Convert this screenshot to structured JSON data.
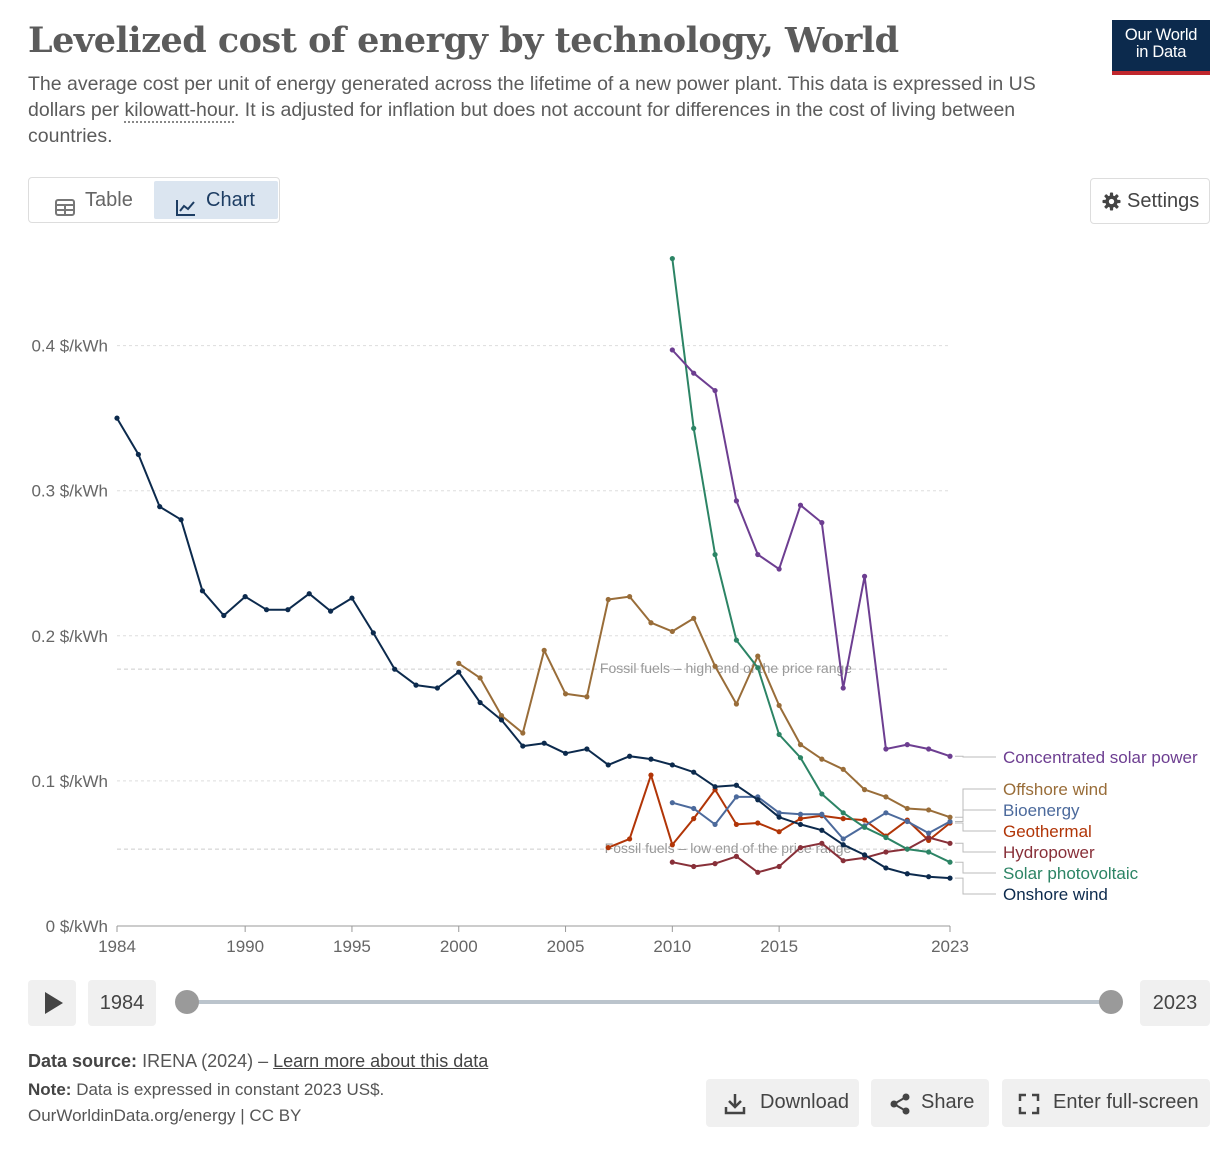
{
  "header": {
    "title": "Levelized cost of energy by technology, World",
    "subtitle_before": "The average cost per unit of energy generated across the lifetime of a new power plant. This data is expressed in US dollars per ",
    "subtitle_link": "kilowatt-hour",
    "subtitle_after": ". It is adjusted for inflation but does not account for differences in the cost of living between countries.",
    "logo_line1": "Our World",
    "logo_line2": "in Data"
  },
  "tabs": {
    "table_label": "Table",
    "chart_label": "Chart",
    "active": "chart"
  },
  "settings_label": "Settings",
  "timeline": {
    "start_label": "1984",
    "end_label": "2023",
    "start_fraction": 0,
    "end_fraction": 1
  },
  "footer": {
    "source_label": "Data source:",
    "source_text": "IRENA (2024) – ",
    "source_link": "Learn more about this data",
    "note_label": "Note:",
    "note_text": "Data is expressed in constant 2023 US$.",
    "credit": "OurWorldinData.org/energy | CC BY"
  },
  "buttons": {
    "download": "Download",
    "share": "Share",
    "fullscreen": "Enter full-screen"
  },
  "colors": {
    "csp": "#6d3e91",
    "offshore": "#996d39",
    "bio": "#4c6a9c",
    "geo": "#b13507",
    "hydro": "#883039",
    "solar": "#2c8465",
    "onshore": "#0c2a4d"
  },
  "chart_data": {
    "type": "line",
    "xlim": [
      1984,
      2023
    ],
    "ylim": [
      0,
      0.45
    ],
    "x_ticks": [
      1984,
      1990,
      1995,
      2000,
      2005,
      2010,
      2015,
      2023
    ],
    "x_tick_labels": [
      "1984",
      "1990",
      "1995",
      "2000",
      "2005",
      "2010",
      "2015",
      "2023"
    ],
    "y_ticks": [
      0,
      0.1,
      0.2,
      0.3,
      0.4
    ],
    "y_tick_labels": [
      "0 $/kWh",
      "0.1 $/kWh",
      "0.2 $/kWh",
      "0.3 $/kWh",
      "0.4 $/kWh"
    ],
    "grid": true,
    "reference_lines": [
      {
        "label": "Fossil fuels – high end of the price range",
        "y": 0.177
      },
      {
        "label": "Fossil fuels – low end of the price range",
        "y": 0.053
      }
    ],
    "series": [
      {
        "name": "Concentrated solar power",
        "color": "#6d3e91",
        "x": [
          2010,
          2011,
          2012,
          2013,
          2014,
          2015,
          2016,
          2017,
          2018,
          2019,
          2020,
          2021,
          2022,
          2023
        ],
        "values": [
          0.397,
          0.381,
          0.369,
          0.293,
          0.256,
          0.246,
          0.29,
          0.278,
          0.164,
          0.241,
          0.122,
          0.125,
          0.122,
          0.117
        ]
      },
      {
        "name": "Offshore wind",
        "color": "#996d39",
        "x": [
          2000,
          2001,
          2002,
          2003,
          2004,
          2005,
          2006,
          2007,
          2008,
          2009,
          2010,
          2011,
          2012,
          2013,
          2014,
          2015,
          2016,
          2017,
          2018,
          2019,
          2020,
          2021,
          2022,
          2023
        ],
        "values": [
          0.181,
          0.171,
          0.145,
          0.133,
          0.19,
          0.16,
          0.158,
          0.225,
          0.227,
          0.209,
          0.203,
          0.212,
          0.179,
          0.153,
          0.186,
          0.152,
          0.125,
          0.115,
          0.108,
          0.094,
          0.089,
          0.081,
          0.08,
          0.075
        ]
      },
      {
        "name": "Bioenergy",
        "color": "#4c6a9c",
        "x": [
          2010,
          2011,
          2012,
          2013,
          2014,
          2015,
          2016,
          2017,
          2018,
          2019,
          2020,
          2021,
          2022,
          2023
        ],
        "values": [
          0.085,
          0.081,
          0.07,
          0.089,
          0.089,
          0.078,
          0.077,
          0.077,
          0.06,
          0.069,
          0.078,
          0.072,
          0.064,
          0.072
        ]
      },
      {
        "name": "Geothermal",
        "color": "#b13507",
        "x": [
          2007,
          2008,
          2009,
          2010,
          2011,
          2012,
          2013,
          2014,
          2015,
          2016,
          2017,
          2018,
          2019,
          2020,
          2021,
          2022,
          2023
        ],
        "values": [
          0.054,
          0.06,
          0.104,
          0.056,
          0.074,
          0.094,
          0.07,
          0.071,
          0.065,
          0.074,
          0.076,
          0.074,
          0.073,
          0.062,
          0.073,
          0.059,
          0.071
        ]
      },
      {
        "name": "Hydropower",
        "color": "#883039",
        "x": [
          2010,
          2011,
          2012,
          2013,
          2014,
          2015,
          2016,
          2017,
          2018,
          2019,
          2020,
          2021,
          2022,
          2023
        ],
        "values": [
          0.044,
          0.041,
          0.043,
          0.048,
          0.037,
          0.041,
          0.054,
          0.057,
          0.045,
          0.047,
          0.051,
          0.053,
          0.061,
          0.057
        ]
      },
      {
        "name": "Solar photovoltaic",
        "color": "#2c8465",
        "x": [
          2010,
          2011,
          2012,
          2013,
          2014,
          2015,
          2016,
          2017,
          2018,
          2019,
          2020,
          2021,
          2022,
          2023
        ],
        "values": [
          0.46,
          0.343,
          0.256,
          0.197,
          0.178,
          0.132,
          0.116,
          0.091,
          0.078,
          0.068,
          0.061,
          0.053,
          0.051,
          0.044
        ]
      },
      {
        "name": "Onshore wind",
        "color": "#0c2a4d",
        "x": [
          1984,
          1985,
          1986,
          1987,
          1988,
          1989,
          1990,
          1991,
          1992,
          1993,
          1994,
          1995,
          1996,
          1997,
          1998,
          1999,
          2000,
          2001,
          2002,
          2003,
          2004,
          2005,
          2006,
          2007,
          2008,
          2009,
          2010,
          2011,
          2012,
          2013,
          2014,
          2015,
          2016,
          2017,
          2018,
          2019,
          2020,
          2021,
          2022,
          2023
        ],
        "values": [
          0.35,
          0.325,
          0.289,
          0.28,
          0.231,
          0.214,
          0.227,
          0.218,
          0.218,
          0.229,
          0.217,
          0.226,
          0.202,
          0.177,
          0.166,
          0.164,
          0.175,
          0.154,
          0.142,
          0.124,
          0.126,
          0.119,
          0.122,
          0.111,
          0.117,
          0.115,
          0.111,
          0.106,
          0.096,
          0.097,
          0.087,
          0.075,
          0.07,
          0.066,
          0.056,
          0.049,
          0.04,
          0.036,
          0.034,
          0.033
        ]
      }
    ],
    "legend_order": [
      "Concentrated solar power",
      "Offshore wind",
      "Bioenergy",
      "Geothermal",
      "Hydropower",
      "Solar photovoltaic",
      "Onshore wind"
    ],
    "legend_placement": "right (line end labels)"
  }
}
